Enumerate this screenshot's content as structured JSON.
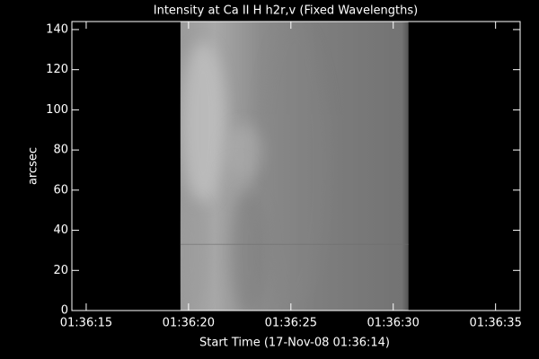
{
  "chart_data": {
    "type": "image",
    "title": "Intensity at Ca II H h2r,v (Fixed Wavelengths)",
    "xlabel": "Start Time (17-Nov-08 01:36:14)",
    "ylabel": "arcsec",
    "xlim": [
      0.3,
      22.2
    ],
    "ylim": [
      0,
      144
    ],
    "xticks": [
      {
        "value": 1,
        "label": "01:36:15"
      },
      {
        "value": 6,
        "label": "01:36:20"
      },
      {
        "value": 11,
        "label": "01:36:25"
      },
      {
        "value": 16,
        "label": "01:36:30"
      },
      {
        "value": 21,
        "label": "01:36:35"
      }
    ],
    "yticks": [
      0,
      20,
      40,
      60,
      80,
      100,
      120,
      140
    ],
    "image_x": [
      5.6,
      16.75
    ],
    "image_y": [
      0,
      144
    ]
  }
}
